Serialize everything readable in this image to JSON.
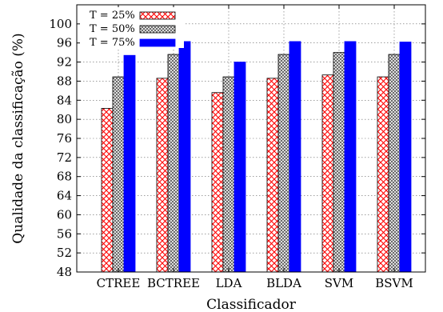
{
  "chart_data": {
    "type": "bar",
    "title": "",
    "xlabel": "Classificador",
    "ylabel": "Qualidade da classificação (%)",
    "ylim": [
      48,
      104
    ],
    "yticks": [
      48,
      52,
      56,
      60,
      64,
      68,
      72,
      76,
      80,
      84,
      88,
      92,
      96,
      100
    ],
    "grid": true,
    "legend_position": "top-left",
    "categories": [
      "CTREE",
      "BCTREE",
      "LDA",
      "BLDA",
      "SVM",
      "BSVM"
    ],
    "series": [
      {
        "name": "T = 25%",
        "values": [
          82.3,
          88.6,
          85.6,
          88.6,
          89.3,
          88.9
        ],
        "color": "#ff0000",
        "pattern": "crosshatch-red"
      },
      {
        "name": "T = 50%",
        "values": [
          88.9,
          93.6,
          88.9,
          93.6,
          94.0,
          93.6
        ],
        "color": "#8c8c8c",
        "pattern": "crosshatch-gray"
      },
      {
        "name": "T = 75%",
        "values": [
          93.4,
          96.3,
          92.0,
          96.3,
          96.3,
          96.2
        ],
        "color": "#0000ff",
        "pattern": "solid"
      }
    ]
  }
}
